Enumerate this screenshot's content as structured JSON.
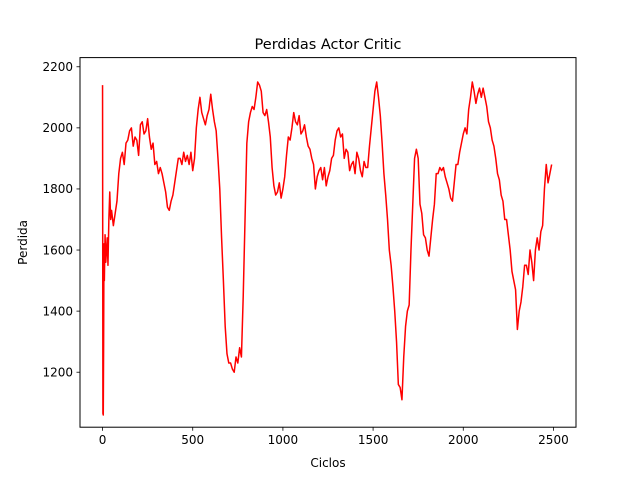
{
  "chart_data": {
    "type": "line",
    "title": "Perdidas Actor Critic",
    "xlabel": "Ciclos",
    "ylabel": "Perdida",
    "xlim": [
      -125,
      2625
    ],
    "ylim": [
      1020,
      2230
    ],
    "xticks": [
      0,
      500,
      1000,
      1500,
      2000,
      2500
    ],
    "yticks": [
      1200,
      1400,
      1600,
      1800,
      2000,
      2200
    ],
    "grid": false,
    "legend": "none",
    "series": [
      {
        "color": "#ff0000",
        "x": [
          0,
          2,
          4,
          6,
          8,
          10,
          14,
          18,
          22,
          26,
          30,
          35,
          40,
          45,
          50,
          60,
          70,
          80,
          90,
          100,
          110,
          120,
          130,
          140,
          150,
          160,
          170,
          180,
          190,
          200,
          210,
          220,
          230,
          240,
          250,
          260,
          270,
          280,
          290,
          300,
          310,
          320,
          330,
          340,
          350,
          360,
          370,
          380,
          390,
          400,
          410,
          420,
          430,
          440,
          450,
          460,
          470,
          480,
          490,
          500,
          510,
          520,
          530,
          540,
          550,
          560,
          570,
          580,
          590,
          600,
          610,
          620,
          630,
          640,
          650,
          660,
          670,
          680,
          690,
          700,
          710,
          720,
          730,
          740,
          750,
          760,
          770,
          780,
          790,
          800,
          810,
          820,
          830,
          840,
          850,
          860,
          870,
          880,
          890,
          900,
          910,
          920,
          930,
          940,
          950,
          960,
          970,
          980,
          990,
          1000,
          1010,
          1020,
          1030,
          1040,
          1050,
          1060,
          1070,
          1080,
          1090,
          1100,
          1110,
          1120,
          1130,
          1140,
          1150,
          1160,
          1170,
          1180,
          1190,
          1200,
          1210,
          1220,
          1230,
          1240,
          1250,
          1260,
          1270,
          1280,
          1290,
          1300,
          1310,
          1320,
          1330,
          1340,
          1350,
          1360,
          1370,
          1380,
          1390,
          1400,
          1410,
          1420,
          1430,
          1440,
          1450,
          1460,
          1470,
          1480,
          1490,
          1500,
          1510,
          1520,
          1530,
          1540,
          1550,
          1560,
          1570,
          1580,
          1590,
          1600,
          1610,
          1620,
          1630,
          1640,
          1650,
          1660,
          1670,
          1680,
          1690,
          1700,
          1710,
          1720,
          1730,
          1740,
          1750,
          1760,
          1770,
          1780,
          1790,
          1800,
          1810,
          1820,
          1830,
          1840,
          1850,
          1860,
          1870,
          1880,
          1890,
          1900,
          1910,
          1920,
          1930,
          1940,
          1950,
          1960,
          1970,
          1980,
          1990,
          2000,
          2010,
          2020,
          2030,
          2040,
          2050,
          2060,
          2070,
          2080,
          2090,
          2100,
          2110,
          2120,
          2130,
          2140,
          2150,
          2160,
          2170,
          2180,
          2190,
          2200,
          2210,
          2220,
          2230,
          2240,
          2250,
          2260,
          2270,
          2280,
          2290,
          2300,
          2310,
          2320,
          2330,
          2340,
          2350,
          2360,
          2370,
          2380,
          2390,
          2400,
          2410,
          2420,
          2430,
          2440,
          2450,
          2460,
          2470,
          2480,
          2490
        ],
        "y": [
          2140,
          1065,
          1060,
          1300,
          1620,
          1500,
          1650,
          1560,
          1600,
          1640,
          1550,
          1700,
          1790,
          1700,
          1730,
          1680,
          1720,
          1760,
          1850,
          1900,
          1920,
          1880,
          1950,
          1960,
          1990,
          2000,
          1940,
          1970,
          1960,
          1910,
          2010,
          2020,
          1980,
          1990,
          2030,
          1970,
          1930,
          1950,
          1880,
          1890,
          1850,
          1870,
          1850,
          1820,
          1790,
          1740,
          1730,
          1760,
          1780,
          1820,
          1860,
          1900,
          1900,
          1880,
          1920,
          1890,
          1910,
          1880,
          1920,
          1860,
          1900,
          2000,
          2060,
          2100,
          2050,
          2030,
          2010,
          2040,
          2060,
          2110,
          2060,
          2020,
          1990,
          1900,
          1800,
          1640,
          1500,
          1350,
          1260,
          1230,
          1230,
          1210,
          1200,
          1250,
          1230,
          1280,
          1250,
          1450,
          1700,
          1950,
          2020,
          2050,
          2070,
          2060,
          2100,
          2150,
          2140,
          2120,
          2050,
          2040,
          2060,
          2020,
          1970,
          1870,
          1810,
          1780,
          1790,
          1820,
          1770,
          1800,
          1840,
          1910,
          1970,
          1960,
          2000,
          2050,
          2020,
          2010,
          2040,
          1980,
          1990,
          2010,
          1970,
          1940,
          1930,
          1900,
          1880,
          1800,
          1840,
          1860,
          1870,
          1830,
          1870,
          1810,
          1840,
          1860,
          1900,
          1910,
          1960,
          1990,
          2000,
          1970,
          1980,
          1900,
          1930,
          1920,
          1860,
          1880,
          1890,
          1850,
          1920,
          1900,
          1860,
          1840,
          1890,
          1870,
          1870,
          1940,
          2000,
          2060,
          2120,
          2150,
          2100,
          2040,
          1950,
          1850,
          1780,
          1700,
          1600,
          1550,
          1480,
          1400,
          1300,
          1160,
          1150,
          1110,
          1250,
          1350,
          1400,
          1420,
          1600,
          1750,
          1900,
          1930,
          1900,
          1750,
          1720,
          1650,
          1640,
          1600,
          1580,
          1640,
          1700,
          1750,
          1850,
          1850,
          1870,
          1860,
          1870,
          1840,
          1820,
          1800,
          1770,
          1760,
          1820,
          1880,
          1880,
          1920,
          1950,
          1980,
          2000,
          1980,
          2060,
          2100,
          2150,
          2120,
          2080,
          2110,
          2130,
          2100,
          2130,
          2100,
          2070,
          2020,
          2000,
          1960,
          1940,
          1900,
          1850,
          1830,
          1780,
          1760,
          1700,
          1700,
          1650,
          1600,
          1530,
          1500,
          1470,
          1340,
          1400,
          1430,
          1480,
          1550,
          1550,
          1520,
          1600,
          1560,
          1500,
          1600,
          1640,
          1600,
          1660,
          1680,
          1800,
          1880,
          1820,
          1850,
          1880
        ]
      }
    ]
  }
}
